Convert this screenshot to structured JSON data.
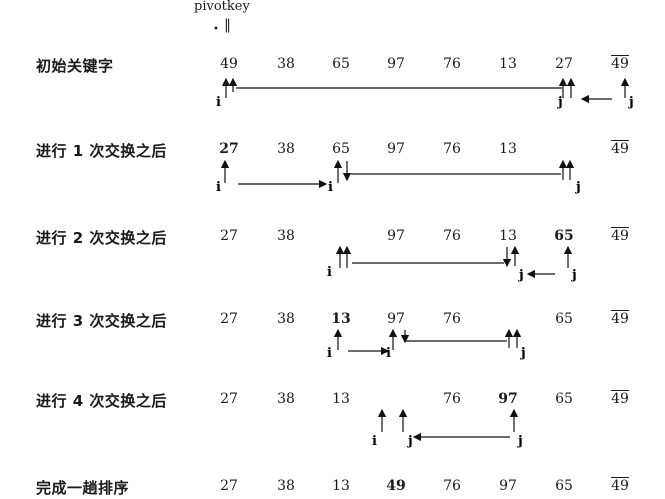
{
  "pivot_label": "pivotkey",
  "pivot_mark": "‖",
  "sentinel_value": "49",
  "rows": [
    {
      "label": "初始关键字",
      "cells": [
        "49",
        "38",
        "65",
        "97",
        "76",
        "13",
        "27",
        "49"
      ],
      "bold": [],
      "markers": [
        {
          "text": "i",
          "col": 0
        },
        {
          "text": "j",
          "col": 6
        },
        {
          "text": "j",
          "col": 7
        }
      ]
    },
    {
      "label": "进行 1 次交换之后",
      "cells": [
        "27",
        "38",
        "65",
        "97",
        "76",
        "13",
        "",
        "49"
      ],
      "bold": [
        0
      ],
      "markers": [
        {
          "text": "i",
          "col": 0
        },
        {
          "text": "i",
          "col": 2
        },
        {
          "text": "j",
          "col": 6
        }
      ]
    },
    {
      "label": "进行 2 次交换之后",
      "cells": [
        "27",
        "38",
        "",
        "97",
        "76",
        "13",
        "65",
        "49"
      ],
      "bold": [
        6
      ],
      "markers": [
        {
          "text": "i",
          "col": 2
        },
        {
          "text": "j",
          "col": 5
        },
        {
          "text": "j",
          "col": 6
        }
      ]
    },
    {
      "label": "进行 3 次交换之后",
      "cells": [
        "27",
        "38",
        "13",
        "97",
        "76",
        "",
        "65",
        "49"
      ],
      "bold": [
        2
      ],
      "markers": [
        {
          "text": "i",
          "col": 2
        },
        {
          "text": "i",
          "col": 3
        },
        {
          "text": "j",
          "col": 5
        }
      ]
    },
    {
      "label": "进行 4 次交换之后",
      "cells": [
        "27",
        "38",
        "13",
        "",
        "76",
        "97",
        "65",
        "49"
      ],
      "bold": [
        5
      ],
      "markers": [
        {
          "text": "i",
          "col": 3
        },
        {
          "text": "j",
          "col": 3
        },
        {
          "text": "j",
          "col": 5
        }
      ]
    },
    {
      "label": "完成一趟排序",
      "cells": [
        "27",
        "38",
        "13",
        "49",
        "76",
        "97",
        "65",
        "49"
      ],
      "bold": [
        3
      ],
      "markers": []
    }
  ]
}
